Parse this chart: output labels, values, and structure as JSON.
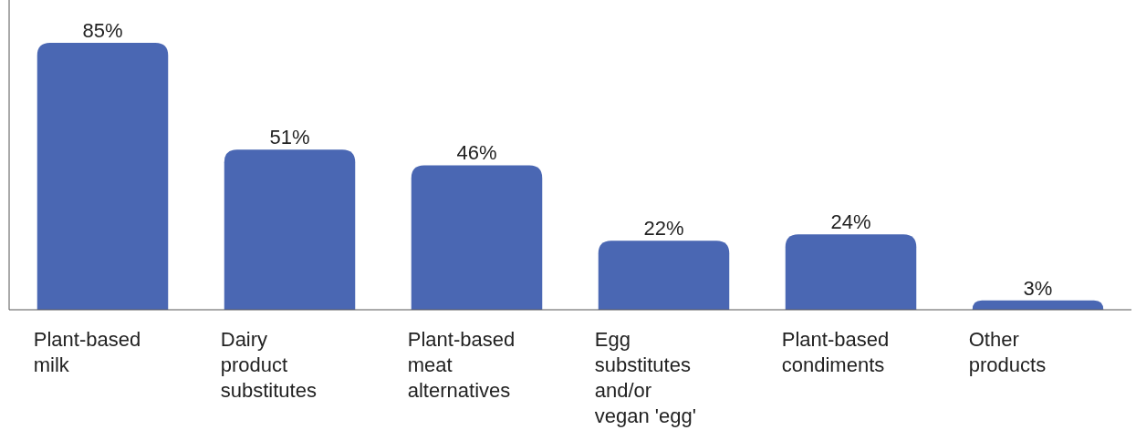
{
  "chart_data": {
    "type": "bar",
    "categories": [
      "Plant-based milk",
      "Dairy product substitutes",
      "Plant-based meat alternatives",
      "Egg substitutes and/or vegan 'egg'",
      "Plant-based condiments",
      "Other products"
    ],
    "values": [
      85,
      51,
      46,
      22,
      24,
      3
    ],
    "value_labels": [
      "85%",
      "51%",
      "46%",
      "22%",
      "24%",
      "3%"
    ],
    "color": "#4a67b3"
  }
}
